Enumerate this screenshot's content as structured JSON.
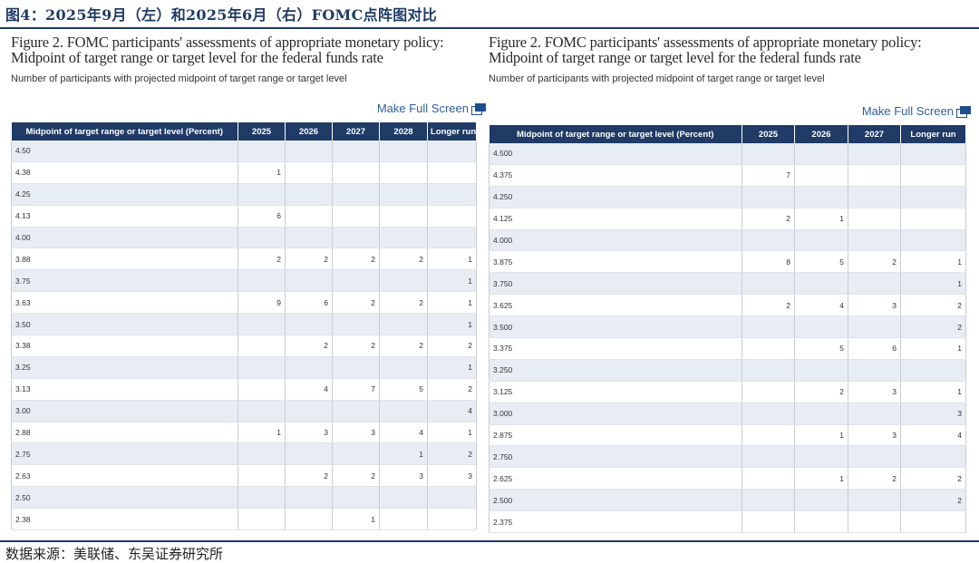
{
  "header": {
    "title": "图4：2025年9月（左）和2025年6月（右）FOMC点阵图对比"
  },
  "source": "数据来源：美联储、东吴证券研究所",
  "left": {
    "figure_title": "Figure 2. FOMC participants' assessments of appropriate monetary policy: Midpoint of target range or target level for the federal funds rate",
    "subtitle": "Number of participants with projected midpoint of target range or target level",
    "make_full_screen": "Make Full Screen",
    "columns": [
      "Midpoint of target range or target level (Percent)",
      "2025",
      "2026",
      "2027",
      "2028",
      "Longer run"
    ],
    "rows": [
      [
        "4.50",
        "",
        "",
        "",
        "",
        ""
      ],
      [
        "4.38",
        "1",
        "",
        "",
        "",
        ""
      ],
      [
        "4.25",
        "",
        "",
        "",
        "",
        ""
      ],
      [
        "4.13",
        "6",
        "",
        "",
        "",
        ""
      ],
      [
        "4.00",
        "",
        "",
        "",
        "",
        ""
      ],
      [
        "3.88",
        "2",
        "2",
        "2",
        "2",
        "1"
      ],
      [
        "3.75",
        "",
        "",
        "",
        "",
        "1"
      ],
      [
        "3.63",
        "9",
        "6",
        "2",
        "2",
        "1"
      ],
      [
        "3.50",
        "",
        "",
        "",
        "",
        "1"
      ],
      [
        "3.38",
        "",
        "2",
        "2",
        "2",
        "2"
      ],
      [
        "3.25",
        "",
        "",
        "",
        "",
        "1"
      ],
      [
        "3.13",
        "",
        "4",
        "7",
        "5",
        "2"
      ],
      [
        "3.00",
        "",
        "",
        "",
        "",
        "4"
      ],
      [
        "2.88",
        "1",
        "3",
        "3",
        "4",
        "1"
      ],
      [
        "2.75",
        "",
        "",
        "",
        "1",
        "2"
      ],
      [
        "2.63",
        "",
        "2",
        "2",
        "3",
        "3"
      ],
      [
        "2.50",
        "",
        "",
        "",
        "",
        ""
      ],
      [
        "2.38",
        "",
        "",
        "1",
        "",
        ""
      ]
    ]
  },
  "right": {
    "figure_title": "Figure 2. FOMC participants' assessments of appropriate monetary policy: Midpoint of target range or target level for the federal funds rate",
    "subtitle": "Number of participants with projected midpoint of target range or target level",
    "make_full_screen": "Make Full Screen",
    "columns": [
      "Midpoint of target range or target level (Percent)",
      "2025",
      "2026",
      "2027",
      "Longer run"
    ],
    "rows": [
      [
        "4.500",
        "",
        "",
        "",
        ""
      ],
      [
        "4.375",
        "7",
        "",
        "",
        ""
      ],
      [
        "4.250",
        "",
        "",
        "",
        ""
      ],
      [
        "4.125",
        "2",
        "1",
        "",
        ""
      ],
      [
        "4.000",
        "",
        "",
        "",
        ""
      ],
      [
        "3.875",
        "8",
        "5",
        "2",
        "1"
      ],
      [
        "3.750",
        "",
        "",
        "",
        "1"
      ],
      [
        "3.625",
        "2",
        "4",
        "3",
        "2"
      ],
      [
        "3.500",
        "",
        "",
        "",
        "2"
      ],
      [
        "3.375",
        "",
        "5",
        "6",
        "1"
      ],
      [
        "3.250",
        "",
        "",
        "",
        ""
      ],
      [
        "3.125",
        "",
        "2",
        "3",
        "1"
      ],
      [
        "3.000",
        "",
        "",
        "",
        "3"
      ],
      [
        "2.875",
        "",
        "1",
        "3",
        "4"
      ],
      [
        "2.750",
        "",
        "",
        "",
        ""
      ],
      [
        "2.625",
        "",
        "1",
        "2",
        "2"
      ],
      [
        "2.500",
        "",
        "",
        "",
        "2"
      ],
      [
        "2.375",
        "",
        "",
        "",
        ""
      ]
    ]
  }
}
